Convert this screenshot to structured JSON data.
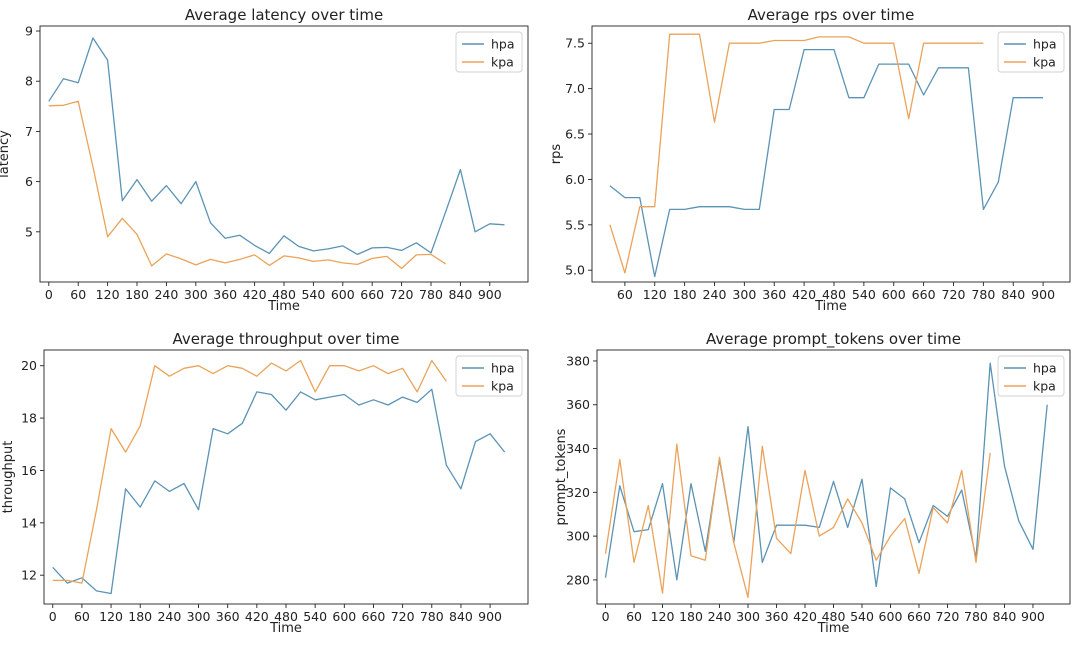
{
  "colors": {
    "hpa": "#5b93b5",
    "kpa": "#eba35a"
  },
  "chart_data": [
    {
      "type": "line",
      "title": "Average latency over time",
      "xlabel": "Time",
      "ylabel": "latency",
      "xlim": [
        -18,
        978
      ],
      "ylim": [
        4.0,
        9.1
      ],
      "xticks": [
        0,
        60,
        120,
        180,
        240,
        300,
        360,
        420,
        480,
        540,
        600,
        660,
        720,
        780,
        840,
        900
      ],
      "yticks": [
        5,
        6,
        7,
        8,
        9
      ],
      "legend": "top-right",
      "series": [
        {
          "name": "hpa",
          "x": [
            0,
            30,
            60,
            90,
            120,
            150,
            180,
            210,
            240,
            270,
            300,
            330,
            360,
            390,
            420,
            450,
            480,
            510,
            540,
            570,
            600,
            630,
            660,
            690,
            720,
            750,
            780,
            810,
            840,
            870,
            900,
            930
          ],
          "y": [
            7.6,
            8.05,
            7.97,
            8.86,
            8.42,
            5.62,
            6.04,
            5.61,
            5.92,
            5.56,
            6.0,
            5.18,
            4.87,
            4.93,
            4.73,
            4.57,
            4.92,
            4.71,
            4.62,
            4.66,
            4.72,
            4.55,
            4.68,
            4.69,
            4.63,
            4.78,
            4.58,
            5.4,
            6.24,
            5.0,
            5.16,
            5.14
          ]
        },
        {
          "name": "kpa",
          "x": [
            0,
            30,
            60,
            90,
            120,
            150,
            180,
            210,
            240,
            270,
            300,
            330,
            360,
            390,
            420,
            450,
            480,
            510,
            540,
            570,
            600,
            630,
            660,
            690,
            720,
            750,
            780,
            810
          ],
          "y": [
            7.51,
            7.52,
            7.6,
            6.3,
            4.9,
            5.27,
            4.95,
            4.32,
            4.56,
            4.46,
            4.34,
            4.45,
            4.38,
            4.45,
            4.54,
            4.33,
            4.52,
            4.48,
            4.41,
            4.44,
            4.38,
            4.35,
            4.47,
            4.51,
            4.27,
            4.54,
            4.55,
            4.36
          ]
        }
      ]
    },
    {
      "type": "line",
      "title": "Average rps over time",
      "xlabel": "Time",
      "ylabel": "rps",
      "xlim": [
        -6,
        954
      ],
      "ylim": [
        4.87,
        7.69
      ],
      "xticks": [
        60,
        120,
        180,
        240,
        300,
        360,
        420,
        480,
        540,
        600,
        660,
        720,
        780,
        840,
        900
      ],
      "yticks": [
        5.0,
        5.5,
        6.0,
        6.5,
        7.0,
        7.5
      ],
      "ytick_labels": [
        "5.0",
        "5.5",
        "6.0",
        "6.5",
        "7.0",
        "7.5"
      ],
      "legend": "top-right",
      "series": [
        {
          "name": "hpa",
          "x": [
            30,
            60,
            90,
            120,
            150,
            180,
            210,
            240,
            270,
            300,
            330,
            360,
            390,
            420,
            450,
            480,
            510,
            540,
            570,
            600,
            630,
            660,
            690,
            720,
            750,
            780,
            810,
            840,
            870,
            900
          ],
          "y": [
            5.93,
            5.8,
            5.8,
            4.93,
            5.67,
            5.67,
            5.7,
            5.7,
            5.7,
            5.67,
            5.67,
            6.77,
            6.77,
            7.43,
            7.43,
            7.43,
            6.9,
            6.9,
            7.27,
            7.27,
            7.27,
            6.93,
            7.23,
            7.23,
            7.23,
            5.67,
            5.97,
            6.9,
            6.9,
            6.9
          ]
        },
        {
          "name": "kpa",
          "x": [
            30,
            60,
            90,
            120,
            150,
            180,
            210,
            240,
            270,
            300,
            330,
            360,
            390,
            420,
            450,
            480,
            510,
            540,
            570,
            600,
            630,
            660,
            690,
            720,
            750,
            780
          ],
          "y": [
            5.5,
            4.97,
            5.7,
            5.7,
            7.6,
            7.6,
            7.6,
            6.63,
            7.5,
            7.5,
            7.5,
            7.53,
            7.53,
            7.53,
            7.57,
            7.57,
            7.57,
            7.5,
            7.5,
            7.5,
            6.67,
            7.5,
            7.5,
            7.5,
            7.5,
            7.5
          ]
        }
      ]
    },
    {
      "type": "line",
      "title": "Average throughput over time",
      "xlabel": "Time",
      "ylabel": "throughput",
      "xlim": [
        -18,
        978
      ],
      "ylim": [
        10.9,
        20.6
      ],
      "xticks": [
        0,
        60,
        120,
        180,
        240,
        300,
        360,
        420,
        480,
        540,
        600,
        660,
        720,
        780,
        840,
        900
      ],
      "yticks": [
        12,
        14,
        16,
        18,
        20
      ],
      "legend": "top-right",
      "series": [
        {
          "name": "hpa",
          "x": [
            0,
            30,
            60,
            90,
            120,
            150,
            180,
            210,
            240,
            270,
            300,
            330,
            360,
            390,
            420,
            450,
            480,
            510,
            540,
            570,
            600,
            630,
            660,
            690,
            720,
            750,
            780,
            810,
            840,
            870,
            900,
            930
          ],
          "y": [
            12.3,
            11.7,
            11.9,
            11.4,
            11.3,
            15.3,
            14.6,
            15.6,
            15.2,
            15.5,
            14.5,
            17.6,
            17.4,
            17.8,
            19.0,
            18.9,
            18.3,
            19.0,
            18.7,
            18.8,
            18.9,
            18.5,
            18.7,
            18.5,
            18.8,
            18.6,
            19.1,
            16.2,
            15.3,
            17.1,
            17.4,
            16.7
          ]
        },
        {
          "name": "kpa",
          "x": [
            0,
            30,
            60,
            90,
            120,
            150,
            180,
            210,
            240,
            270,
            300,
            330,
            360,
            390,
            420,
            450,
            480,
            510,
            540,
            570,
            600,
            630,
            660,
            690,
            720,
            750,
            780,
            810
          ],
          "y": [
            11.8,
            11.8,
            11.7,
            14.5,
            17.6,
            16.7,
            17.7,
            20.0,
            19.6,
            19.9,
            20.0,
            19.7,
            20.0,
            19.9,
            19.6,
            20.1,
            19.8,
            20.2,
            19.0,
            20.0,
            20.0,
            19.8,
            20.0,
            19.7,
            19.9,
            19.0,
            20.2,
            19.4
          ]
        }
      ]
    },
    {
      "type": "line",
      "title": "Average prompt_tokens over time",
      "xlabel": "Time",
      "ylabel": "prompt_tokens",
      "xlim": [
        -18,
        978
      ],
      "ylim": [
        269,
        385
      ],
      "xticks": [
        0,
        60,
        120,
        180,
        240,
        300,
        360,
        420,
        480,
        540,
        600,
        660,
        720,
        780,
        840,
        900
      ],
      "yticks": [
        280,
        300,
        320,
        340,
        360,
        380
      ],
      "legend": "top-right",
      "series": [
        {
          "name": "hpa",
          "x": [
            0,
            30,
            60,
            90,
            120,
            150,
            180,
            210,
            240,
            270,
            300,
            330,
            360,
            390,
            420,
            450,
            480,
            510,
            540,
            570,
            600,
            630,
            660,
            690,
            720,
            750,
            780,
            810,
            840,
            870,
            900,
            930
          ],
          "y": [
            281,
            323,
            302,
            303,
            324,
            280,
            324,
            293,
            335,
            297,
            350,
            288,
            305,
            305,
            305,
            304,
            325,
            304,
            326,
            277,
            322,
            317,
            297,
            314,
            309,
            321,
            290,
            379,
            332,
            307,
            294,
            360
          ]
        },
        {
          "name": "kpa",
          "x": [
            0,
            30,
            60,
            90,
            120,
            150,
            180,
            210,
            240,
            270,
            300,
            330,
            360,
            390,
            420,
            450,
            480,
            510,
            540,
            570,
            600,
            630,
            660,
            690,
            720,
            750,
            780,
            810
          ],
          "y": [
            292,
            335,
            288,
            314,
            274,
            342,
            291,
            289,
            336,
            297,
            272,
            341,
            299,
            292,
            330,
            300,
            304,
            317,
            306,
            289,
            300,
            308,
            283,
            313,
            306,
            330,
            288,
            338
          ]
        }
      ]
    }
  ]
}
